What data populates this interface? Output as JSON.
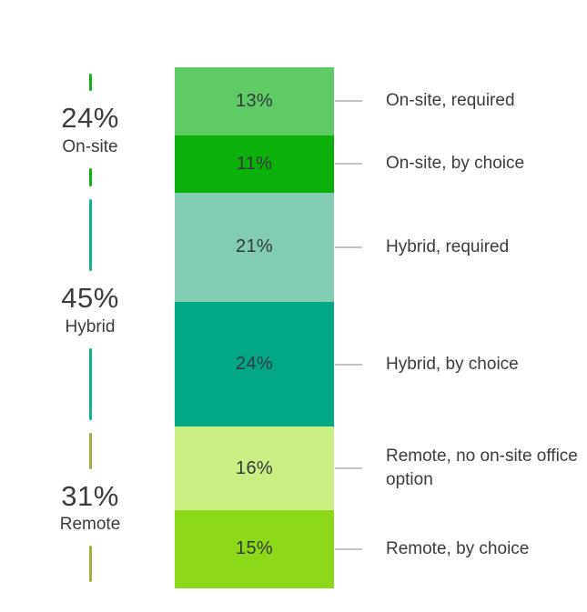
{
  "chart_data": {
    "type": "bar",
    "subtype": "single-stacked-column-with-grouped-brackets",
    "unit": "%",
    "background": "#ffffff",
    "text_color": "#3c3c3c",
    "connector_color": "#c4c4c4",
    "groups": [
      {
        "name": "On-site",
        "total": 24,
        "total_label": "24%",
        "bracket_color": "#14b214"
      },
      {
        "name": "Hybrid",
        "total": 45,
        "total_label": "45%",
        "bracket_color": "#0eb393"
      },
      {
        "name": "Remote",
        "total": 31,
        "total_label": "31%",
        "bracket_color": "#a3a93a"
      }
    ],
    "segments": [
      {
        "label": "On-site, required",
        "value": 13,
        "value_label": "13%",
        "color": "#5fcb64",
        "group": 0
      },
      {
        "label": "On-site, by choice",
        "value": 11,
        "value_label": "11%",
        "color": "#0bb00b",
        "group": 0
      },
      {
        "label": "Hybrid, required",
        "value": 21,
        "value_label": "21%",
        "color": "#82ccb3",
        "group": 1
      },
      {
        "label": "Hybrid, by choice",
        "value": 24,
        "value_label": "24%",
        "color": "#02a886",
        "group": 1
      },
      {
        "label": "Remote, no on-site office option",
        "value": 16,
        "value_label": "16%",
        "color": "#c9ee82",
        "group": 2
      },
      {
        "label": "Remote, by choice",
        "value": 15,
        "value_label": "15%",
        "color": "#8cd919",
        "group": 2
      }
    ]
  }
}
